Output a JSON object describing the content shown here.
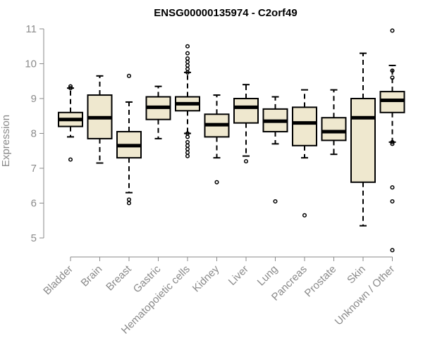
{
  "chart_data": {
    "type": "boxplot",
    "title": "ENSG00000135974 - C2orf49",
    "ylabel": "Expression",
    "ylim": [
      4.5,
      11.1
    ],
    "yticks": [
      5,
      6,
      7,
      8,
      9,
      10,
      11
    ],
    "grid": false,
    "colors": {
      "box_fill": "#efe8cf",
      "box_stroke": "#000000",
      "axis": "#8a8a8a",
      "text": "#8a8a8a"
    },
    "categories": [
      "Bladder",
      "Brain",
      "Breast",
      "Gastric",
      "Hematopoietic cells",
      "Kidney",
      "Liver",
      "Lung",
      "Pancreas",
      "Prostate",
      "Skin",
      "Unknown / Other"
    ],
    "boxes": [
      {
        "category": "Bladder",
        "whisker_low": 7.9,
        "q1": 8.2,
        "median": 8.4,
        "q3": 8.6,
        "whisker_high": 9.3,
        "outliers": [
          7.25,
          9.3,
          9.35
        ]
      },
      {
        "category": "Brain",
        "whisker_low": 7.15,
        "q1": 7.85,
        "median": 8.45,
        "q3": 9.1,
        "whisker_high": 9.65,
        "outliers": []
      },
      {
        "category": "Breast",
        "whisker_low": 6.3,
        "q1": 7.3,
        "median": 7.65,
        "q3": 8.05,
        "whisker_high": 8.9,
        "outliers": [
          6.0,
          6.1,
          9.65
        ]
      },
      {
        "category": "Gastric",
        "whisker_low": 7.85,
        "q1": 8.4,
        "median": 8.75,
        "q3": 9.05,
        "whisker_high": 9.35,
        "outliers": []
      },
      {
        "category": "Hematopoietic cells",
        "whisker_low": 8.0,
        "q1": 8.65,
        "median": 8.85,
        "q3": 9.05,
        "whisker_high": 9.75,
        "outliers": [
          7.35,
          7.45,
          7.55,
          7.65,
          7.75,
          7.9,
          8.0,
          9.75,
          9.85,
          9.95,
          10.05,
          10.15,
          10.3,
          10.5
        ]
      },
      {
        "category": "Kidney",
        "whisker_low": 7.3,
        "q1": 7.9,
        "median": 8.25,
        "q3": 8.55,
        "whisker_high": 9.1,
        "outliers": [
          6.6
        ]
      },
      {
        "category": "Liver",
        "whisker_low": 7.35,
        "q1": 8.3,
        "median": 8.75,
        "q3": 9.0,
        "whisker_high": 9.4,
        "outliers": [
          7.2
        ]
      },
      {
        "category": "Lung",
        "whisker_low": 7.7,
        "q1": 8.05,
        "median": 8.35,
        "q3": 8.7,
        "whisker_high": 9.05,
        "outliers": [
          6.05
        ]
      },
      {
        "category": "Pancreas",
        "whisker_low": 7.3,
        "q1": 7.65,
        "median": 8.3,
        "q3": 8.75,
        "whisker_high": 9.25,
        "outliers": [
          5.65
        ]
      },
      {
        "category": "Prostate",
        "whisker_low": 7.4,
        "q1": 7.8,
        "median": 8.05,
        "q3": 8.45,
        "whisker_high": 9.25,
        "outliers": []
      },
      {
        "category": "Skin",
        "whisker_low": 5.35,
        "q1": 6.6,
        "median": 8.45,
        "q3": 9.0,
        "whisker_high": 10.3,
        "outliers": []
      },
      {
        "category": "Unknown / Other",
        "whisker_low": 7.75,
        "q1": 8.6,
        "median": 8.95,
        "q3": 9.2,
        "whisker_high": 9.95,
        "outliers": [
          4.65,
          6.05,
          6.45,
          7.7,
          7.75,
          9.6,
          9.8,
          10.95
        ]
      }
    ]
  }
}
